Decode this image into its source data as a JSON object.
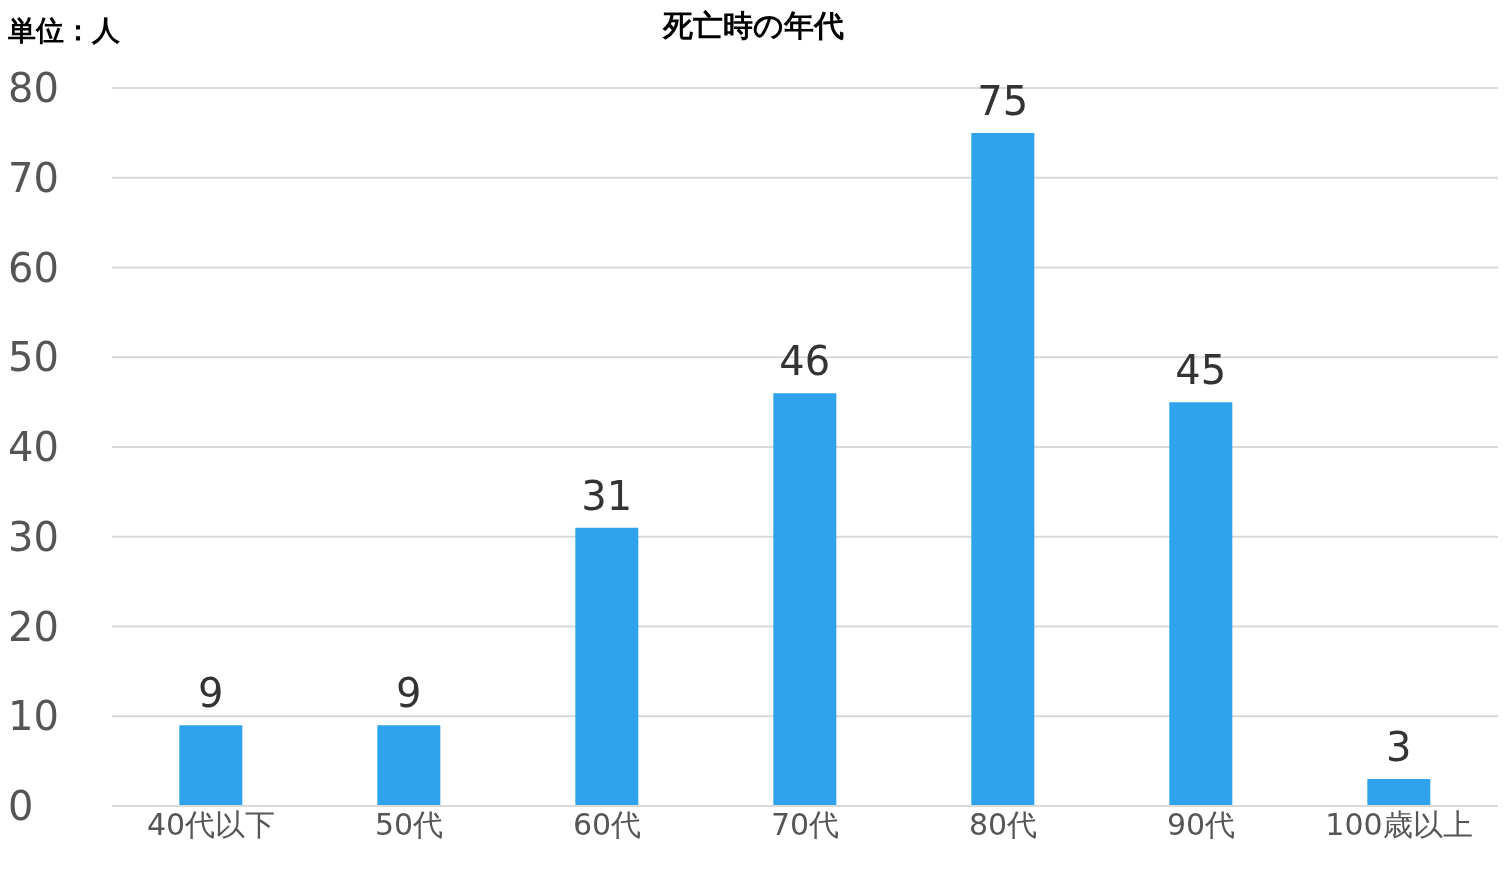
{
  "chart_data": {
    "type": "bar",
    "title": "死亡時の年代",
    "ylabel": "単位：人",
    "categories": [
      "40代以下",
      "50代",
      "60代",
      "70代",
      "80代",
      "90代",
      "100歳以上"
    ],
    "values": [
      9,
      9,
      31,
      46,
      75,
      45,
      3
    ],
    "color": "#2ea3ec",
    "ylim": [
      0,
      80
    ],
    "yticks": [
      0,
      10,
      20,
      30,
      40,
      50,
      60,
      70,
      80
    ],
    "grid": "y",
    "data_labels": true
  }
}
